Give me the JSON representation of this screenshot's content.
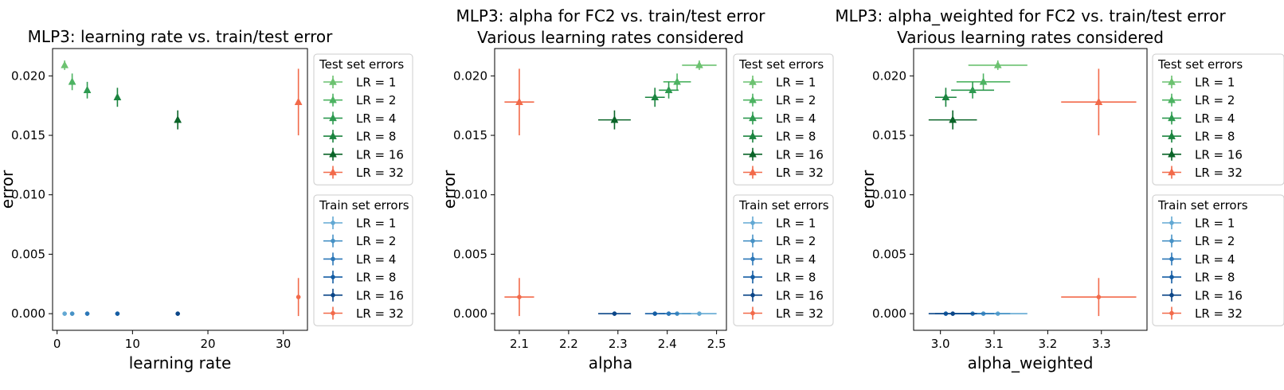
{
  "colors": {
    "test": {
      "1": "#6cc270",
      "2": "#4db362",
      "4": "#2e9a50",
      "8": "#1b843f",
      "16": "#0a6428",
      "32": "#f26a4a"
    },
    "train": {
      "1": "#62a8d3",
      "2": "#4792c6",
      "4": "#2b77b8",
      "8": "#145da4",
      "16": "#0b4688",
      "32": "#f26a4a"
    }
  },
  "chart_data": [
    {
      "type": "scatter",
      "title": "MLP3: learning rate vs. train/test error",
      "xlabel": "learning rate",
      "ylabel": "error",
      "xlim": [
        -0.6,
        33.2
      ],
      "ylim": [
        -0.0014,
        0.0223
      ],
      "xticks": [
        0,
        10,
        20,
        30
      ],
      "xtick_labels": [
        "0",
        "10",
        "20",
        "30"
      ],
      "yticks": [
        0.0,
        0.005,
        0.01,
        0.015,
        0.02
      ],
      "ytick_labels": [
        "0.000",
        "0.005",
        "0.010",
        "0.015",
        "0.020"
      ],
      "legends": [
        {
          "title": "Test set errors",
          "entries": [
            "LR = 1",
            "LR = 2",
            "LR = 4",
            "LR = 8",
            "LR = 16",
            "LR = 32"
          ]
        },
        {
          "title": "Train set errors",
          "entries": [
            "LR = 1",
            "LR = 2",
            "LR = 4",
            "LR = 8",
            "LR = 16",
            "LR = 32"
          ]
        }
      ],
      "series": [
        {
          "set": "test",
          "lr": "1",
          "x": 1,
          "xerr": 0,
          "y": 0.0209,
          "yerr": 0.0004
        },
        {
          "set": "test",
          "lr": "2",
          "x": 2,
          "xerr": 0,
          "y": 0.0195,
          "yerr": 0.0007
        },
        {
          "set": "test",
          "lr": "4",
          "x": 4,
          "xerr": 0,
          "y": 0.0188,
          "yerr": 0.0007
        },
        {
          "set": "test",
          "lr": "8",
          "x": 8,
          "xerr": 0,
          "y": 0.0182,
          "yerr": 0.0008
        },
        {
          "set": "test",
          "lr": "16",
          "x": 16,
          "xerr": 0,
          "y": 0.0163,
          "yerr": 0.0008
        },
        {
          "set": "test",
          "lr": "32",
          "x": 32,
          "xerr": 0,
          "y": 0.0178,
          "yerr": 0.0028
        },
        {
          "set": "train",
          "lr": "1",
          "x": 1,
          "xerr": 0,
          "y": 0.0,
          "yerr": 0
        },
        {
          "set": "train",
          "lr": "2",
          "x": 2,
          "xerr": 0,
          "y": 0.0,
          "yerr": 0
        },
        {
          "set": "train",
          "lr": "4",
          "x": 4,
          "xerr": 0,
          "y": 0.0,
          "yerr": 0
        },
        {
          "set": "train",
          "lr": "8",
          "x": 8,
          "xerr": 0,
          "y": 0.0,
          "yerr": 0
        },
        {
          "set": "train",
          "lr": "16",
          "x": 16,
          "xerr": 0,
          "y": 0.0,
          "yerr": 0
        },
        {
          "set": "train",
          "lr": "32",
          "x": 32,
          "xerr": 0,
          "y": 0.0014,
          "yerr": 0.0016
        }
      ]
    },
    {
      "type": "scatter",
      "title": "MLP3: alpha for FC2 vs. train/test error\nVarious learning rates considered",
      "xlabel": "alpha",
      "ylabel": "error",
      "xlim": [
        2.05,
        2.52
      ],
      "ylim": [
        -0.0014,
        0.0223
      ],
      "xticks": [
        2.1,
        2.2,
        2.3,
        2.4,
        2.5
      ],
      "xtick_labels": [
        "2.1",
        "2.2",
        "2.3",
        "2.4",
        "2.5"
      ],
      "yticks": [
        0.0,
        0.005,
        0.01,
        0.015,
        0.02
      ],
      "ytick_labels": [
        "0.000",
        "0.005",
        "0.010",
        "0.015",
        "0.020"
      ],
      "legends": [
        {
          "title": "Test set errors",
          "entries": [
            "LR = 1",
            "LR = 2",
            "LR = 4",
            "LR = 8",
            "LR = 16",
            "LR = 32"
          ]
        },
        {
          "title": "Train set errors",
          "entries": [
            "LR = 1",
            "LR = 2",
            "LR = 4",
            "LR = 8",
            "LR = 16",
            "LR = 32"
          ]
        }
      ],
      "series": [
        {
          "set": "test",
          "lr": "1",
          "x": 2.465,
          "xerr": 0.035,
          "y": 0.0209,
          "yerr": 0.0004
        },
        {
          "set": "test",
          "lr": "2",
          "x": 2.42,
          "xerr": 0.028,
          "y": 0.0195,
          "yerr": 0.0007
        },
        {
          "set": "test",
          "lr": "4",
          "x": 2.403,
          "xerr": 0.02,
          "y": 0.0188,
          "yerr": 0.0007
        },
        {
          "set": "test",
          "lr": "8",
          "x": 2.375,
          "xerr": 0.02,
          "y": 0.0182,
          "yerr": 0.0008
        },
        {
          "set": "test",
          "lr": "16",
          "x": 2.293,
          "xerr": 0.033,
          "y": 0.0163,
          "yerr": 0.0008
        },
        {
          "set": "test",
          "lr": "32",
          "x": 2.1,
          "xerr": 0.03,
          "y": 0.0178,
          "yerr": 0.0028
        },
        {
          "set": "train",
          "lr": "1",
          "x": 2.465,
          "xerr": 0.035,
          "y": 0.0,
          "yerr": 0
        },
        {
          "set": "train",
          "lr": "2",
          "x": 2.42,
          "xerr": 0.028,
          "y": 0.0,
          "yerr": 0
        },
        {
          "set": "train",
          "lr": "4",
          "x": 2.403,
          "xerr": 0.02,
          "y": 0.0,
          "yerr": 0
        },
        {
          "set": "train",
          "lr": "8",
          "x": 2.375,
          "xerr": 0.02,
          "y": 0.0,
          "yerr": 0
        },
        {
          "set": "train",
          "lr": "16",
          "x": 2.293,
          "xerr": 0.033,
          "y": 0.0,
          "yerr": 0
        },
        {
          "set": "train",
          "lr": "32",
          "x": 2.1,
          "xerr": 0.03,
          "y": 0.0014,
          "yerr": 0.0016
        }
      ]
    },
    {
      "type": "scatter",
      "title": "MLP3: alpha_weighted for FC2 vs. train/test error\nVarious learning rates considered",
      "xlabel": "alpha_weighted",
      "ylabel": "error",
      "xlim": [
        2.95,
        3.385
      ],
      "ylim": [
        -0.0014,
        0.0223
      ],
      "xticks": [
        3.0,
        3.1,
        3.2,
        3.3
      ],
      "xtick_labels": [
        "3.0",
        "3.1",
        "3.2",
        "3.3"
      ],
      "yticks": [
        0.0,
        0.005,
        0.01,
        0.015,
        0.02
      ],
      "ytick_labels": [
        "0.000",
        "0.005",
        "0.010",
        "0.015",
        "0.020"
      ],
      "legends": [
        {
          "title": "Test set errors",
          "entries": [
            "LR = 1",
            "LR = 2",
            "LR = 4",
            "LR = 8",
            "LR = 16",
            "LR = 32"
          ]
        },
        {
          "title": "Train set errors",
          "entries": [
            "LR = 1",
            "LR = 2",
            "LR = 4",
            "LR = 8",
            "LR = 16",
            "LR = 32"
          ]
        }
      ],
      "series": [
        {
          "set": "test",
          "lr": "1",
          "x": 3.107,
          "xerr": 0.055,
          "y": 0.0209,
          "yerr": 0.0004
        },
        {
          "set": "test",
          "lr": "2",
          "x": 3.08,
          "xerr": 0.05,
          "y": 0.0195,
          "yerr": 0.0007
        },
        {
          "set": "test",
          "lr": "4",
          "x": 3.06,
          "xerr": 0.04,
          "y": 0.0188,
          "yerr": 0.0007
        },
        {
          "set": "test",
          "lr": "8",
          "x": 3.01,
          "xerr": 0.02,
          "y": 0.0182,
          "yerr": 0.0008
        },
        {
          "set": "test",
          "lr": "16",
          "x": 3.023,
          "xerr": 0.045,
          "y": 0.0163,
          "yerr": 0.0008
        },
        {
          "set": "test",
          "lr": "32",
          "x": 3.295,
          "xerr": 0.07,
          "y": 0.0178,
          "yerr": 0.0028
        },
        {
          "set": "train",
          "lr": "1",
          "x": 3.107,
          "xerr": 0.055,
          "y": 0.0,
          "yerr": 0
        },
        {
          "set": "train",
          "lr": "2",
          "x": 3.08,
          "xerr": 0.05,
          "y": 0.0,
          "yerr": 0
        },
        {
          "set": "train",
          "lr": "4",
          "x": 3.06,
          "xerr": 0.04,
          "y": 0.0,
          "yerr": 0
        },
        {
          "set": "train",
          "lr": "8",
          "x": 3.01,
          "xerr": 0.02,
          "y": 0.0,
          "yerr": 0
        },
        {
          "set": "train",
          "lr": "16",
          "x": 3.023,
          "xerr": 0.045,
          "y": 0.0,
          "yerr": 0
        },
        {
          "set": "train",
          "lr": "32",
          "x": 3.295,
          "xerr": 0.07,
          "y": 0.0014,
          "yerr": 0.0016
        }
      ]
    }
  ]
}
